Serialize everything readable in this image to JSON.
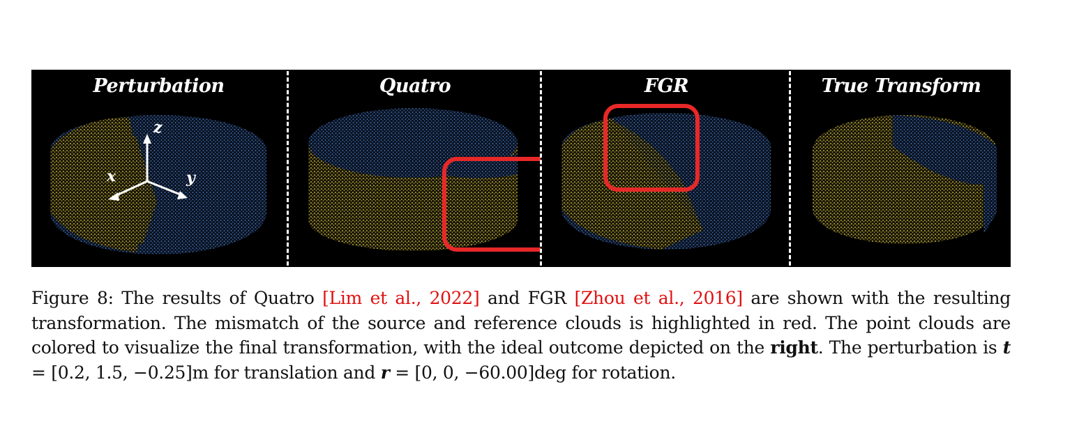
{
  "panels": [
    {
      "title": "Perturbation"
    },
    {
      "title": "Quatro"
    },
    {
      "title": "FGR"
    },
    {
      "title": "True Transform"
    }
  ],
  "axes": {
    "z": "z",
    "x": "x",
    "y": "y"
  },
  "colors": {
    "source_cloud": "#e8d24a",
    "reference_cloud": "#4a7fc8",
    "highlight": "#e82828",
    "background": "#000000"
  },
  "caption": {
    "label": "Figure 8:",
    "t1": "The results of Quatro ",
    "cite1": "[Lim et al., 2022]",
    "t2": " and FGR ",
    "cite2": "[Zhou et al., 2016]",
    "t3": " are shown with the resulting transformation. The mismatch of the source and reference clouds is highlighted in red. The point clouds are colored to visualize the final transformation, with the ideal outcome depicted on the ",
    "bold_right": "right",
    "t4": ". The perturbation is ",
    "t_symbol": "t",
    "t_value": " = [0.2, 1.5, −0.25]m for translation and ",
    "r_symbol": "r",
    "r_value": " = [0, 0, −60.00]deg for rotation."
  }
}
